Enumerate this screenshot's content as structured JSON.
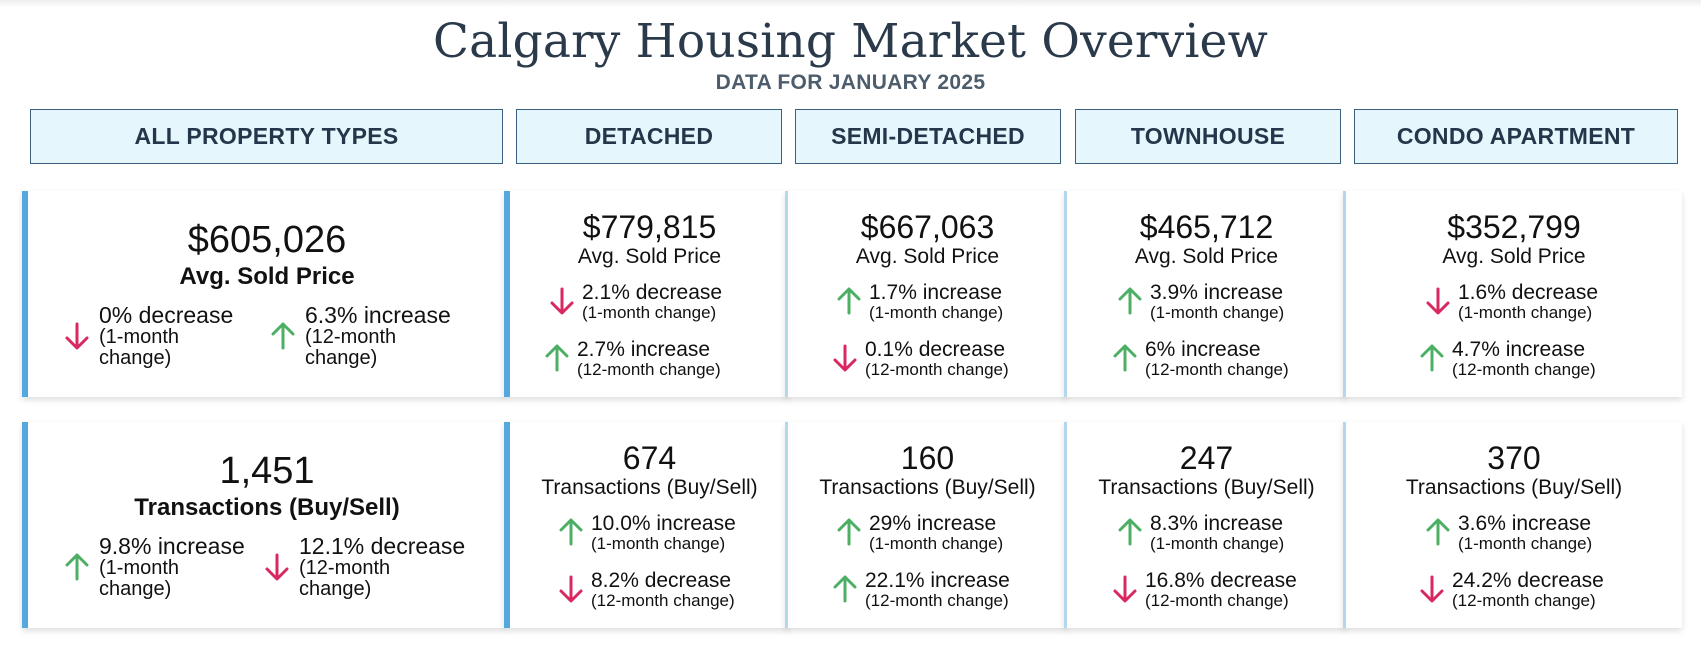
{
  "title": "Calgary Housing Market Overview",
  "subtitle": "DATA FOR JANUARY 2025",
  "colors": {
    "increase": "#4caf63",
    "decrease": "#d8285f",
    "accent": "#55a8dd",
    "header_bg": "#e6f6fd",
    "header_border": "#3a5f7f"
  },
  "headers": [
    "ALL PROPERTY TYPES",
    "DETACHED",
    "SEMI-DETACHED",
    "TOWNHOUSE",
    "CONDO APARTMENT"
  ],
  "price": {
    "label": "Avg. Sold Price",
    "all": {
      "value": "$605,026",
      "m1": {
        "dir": "down",
        "text": "0% decrease",
        "sub1": "(1-month",
        "sub2": "change)"
      },
      "m12": {
        "dir": "up",
        "text": "6.3% increase",
        "sub1": "(12-month",
        "sub2": "change)"
      }
    },
    "types": [
      {
        "value": "$779,815",
        "m1": {
          "dir": "down",
          "text": "2.1% decrease",
          "sub": "(1-month change)"
        },
        "m12": {
          "dir": "up",
          "text": "2.7% increase",
          "sub": "(12-month change)"
        }
      },
      {
        "value": "$667,063",
        "m1": {
          "dir": "up",
          "text": "1.7% increase",
          "sub": "(1-month change)"
        },
        "m12": {
          "dir": "down",
          "text": "0.1% decrease",
          "sub": "(12-month change)"
        }
      },
      {
        "value": "$465,712",
        "m1": {
          "dir": "up",
          "text": "3.9% increase",
          "sub": "(1-month change)"
        },
        "m12": {
          "dir": "up",
          "text": "6% increase",
          "sub": "(12-month change)"
        }
      },
      {
        "value": "$352,799",
        "m1": {
          "dir": "down",
          "text": "1.6% decrease",
          "sub": "(1-month change)"
        },
        "m12": {
          "dir": "up",
          "text": "4.7% increase",
          "sub": "(12-month change)"
        }
      }
    ]
  },
  "transactions": {
    "label": "Transactions (Buy/Sell)",
    "all": {
      "value": "1,451",
      "m1": {
        "dir": "up",
        "text": "9.8% increase",
        "sub1": "(1-month",
        "sub2": "change)"
      },
      "m12": {
        "dir": "down",
        "text": "12.1% decrease",
        "sub1": "(12-month",
        "sub2": "change)"
      }
    },
    "types": [
      {
        "value": "674",
        "m1": {
          "dir": "up",
          "text": "10.0% increase",
          "sub": "(1-month change)"
        },
        "m12": {
          "dir": "down",
          "text": "8.2% decrease",
          "sub": "(12-month change)"
        }
      },
      {
        "value": "160",
        "m1": {
          "dir": "up",
          "text": "29% increase",
          "sub": "(1-month change)"
        },
        "m12": {
          "dir": "up",
          "text": "22.1% increase",
          "sub": "(12-month change)"
        }
      },
      {
        "value": "247",
        "m1": {
          "dir": "up",
          "text": "8.3% increase",
          "sub": "(1-month change)"
        },
        "m12": {
          "dir": "down",
          "text": "16.8% decrease",
          "sub": "(12-month change)"
        }
      },
      {
        "value": "370",
        "m1": {
          "dir": "up",
          "text": "3.6% increase",
          "sub": "(1-month change)"
        },
        "m12": {
          "dir": "down",
          "text": "24.2% decrease",
          "sub": "(12-month change)"
        }
      }
    ]
  }
}
